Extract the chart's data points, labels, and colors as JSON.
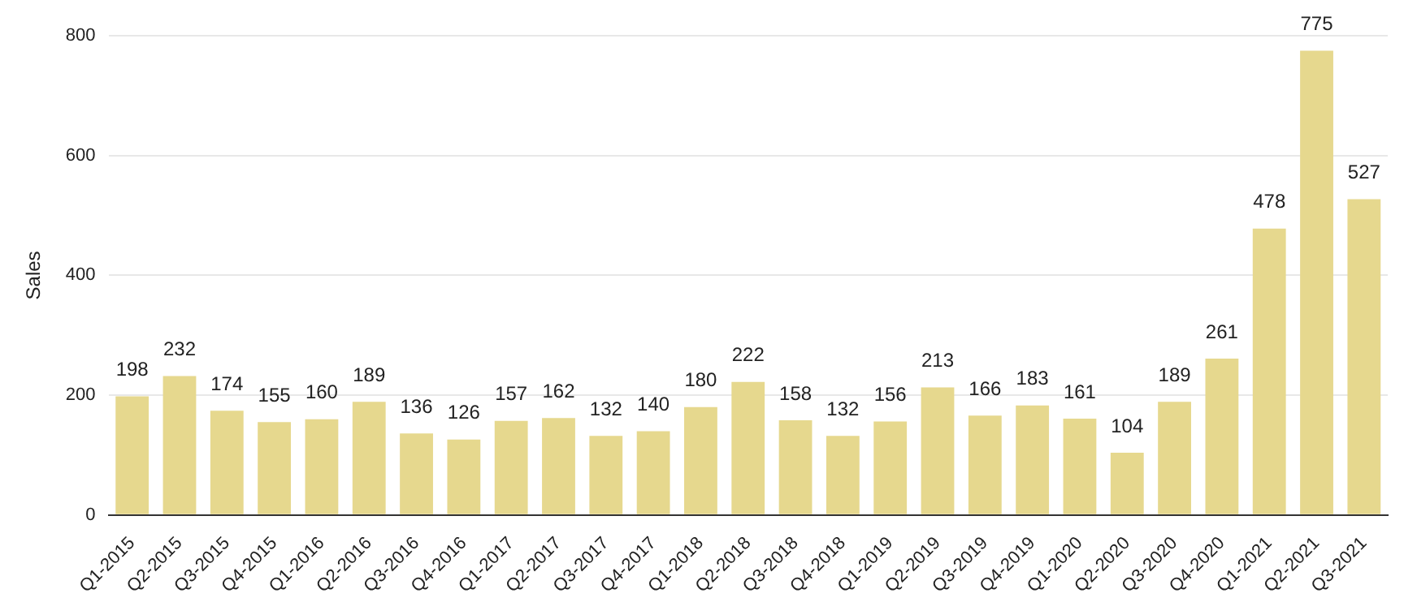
{
  "chart_data": {
    "type": "bar",
    "ylabel": "Sales",
    "categories": [
      "Q1-2015",
      "Q2-2015",
      "Q3-2015",
      "Q4-2015",
      "Q1-2016",
      "Q2-2016",
      "Q3-2016",
      "Q4-2016",
      "Q1-2017",
      "Q2-2017",
      "Q3-2017",
      "Q4-2017",
      "Q1-2018",
      "Q2-2018",
      "Q3-2018",
      "Q4-2018",
      "Q1-2019",
      "Q2-2019",
      "Q3-2019",
      "Q4-2019",
      "Q1-2020",
      "Q2-2020",
      "Q3-2020",
      "Q4-2020",
      "Q1-2021",
      "Q2-2021",
      "Q3-2021"
    ],
    "values": [
      198,
      232,
      174,
      155,
      160,
      189,
      136,
      126,
      157,
      162,
      132,
      140,
      180,
      222,
      158,
      132,
      156,
      213,
      166,
      183,
      161,
      104,
      189,
      261,
      478,
      775,
      527
    ],
    "color": "#e6d88e",
    "ylim": [
      0,
      800
    ],
    "yticks": [
      0,
      200,
      400,
      600,
      800
    ],
    "grid": "y",
    "data_labels": true,
    "legend": false
  }
}
